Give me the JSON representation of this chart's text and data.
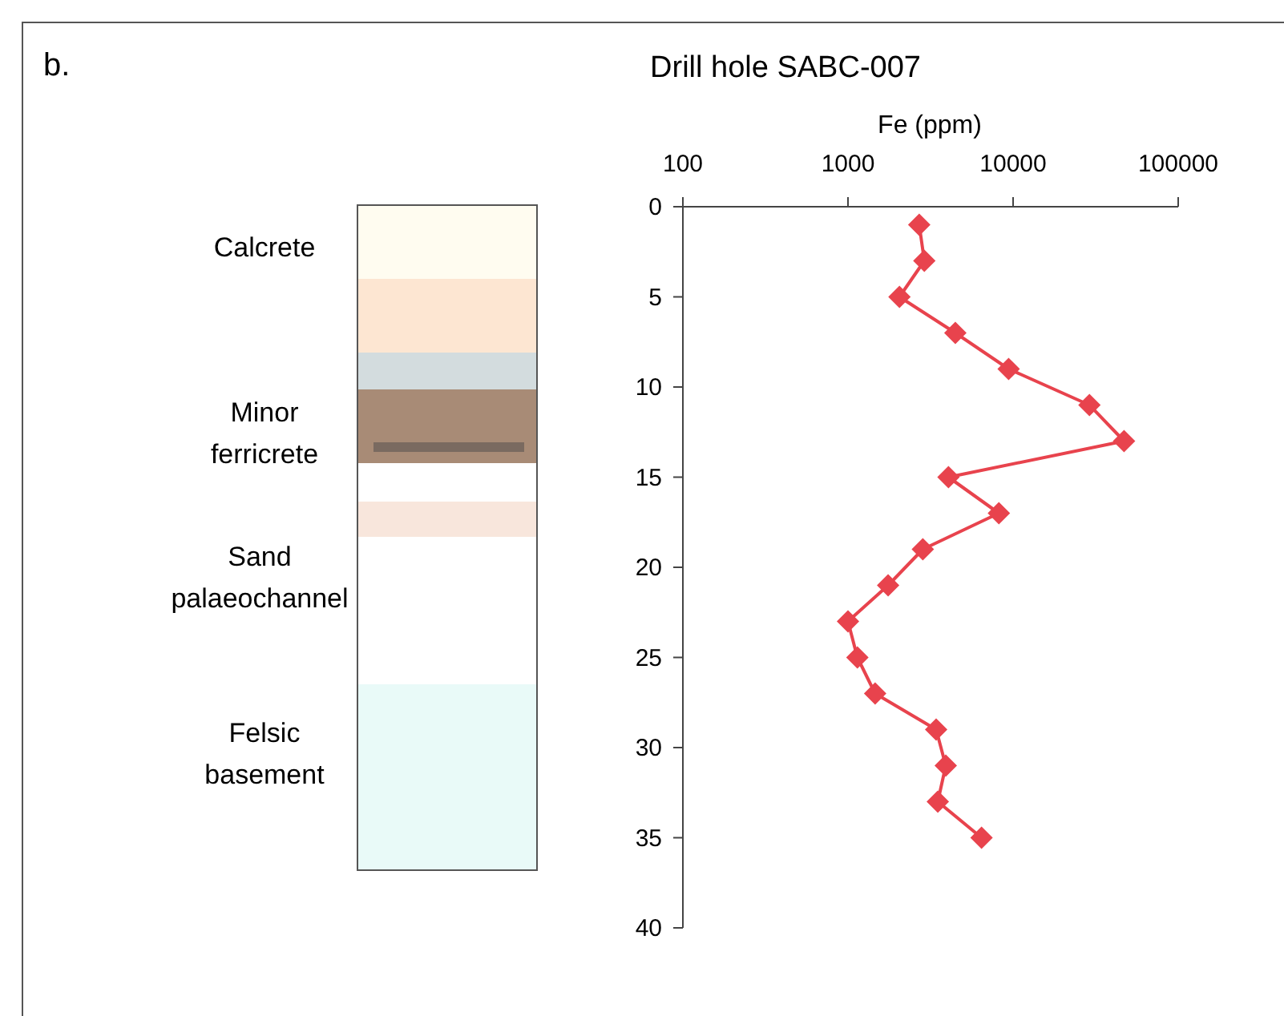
{
  "chart_data": {
    "type": "line",
    "title": "Drill hole SABC-007",
    "xlabel": "Fe (ppm)",
    "log": "x",
    "xlim": [
      100,
      100000
    ],
    "xticks": [
      100,
      1000,
      10000,
      100000
    ],
    "ylim": [
      40,
      0
    ],
    "yticks": [
      0,
      5,
      10,
      15,
      20,
      25,
      30,
      35,
      40
    ],
    "grid": false,
    "marker": "diamond",
    "line_style": "solid",
    "x": [
      2700,
      2900,
      2050,
      4470,
      9400,
      29000,
      47000,
      4060,
      8200,
      2840,
      1750,
      1000,
      1140,
      1460,
      3420,
      3910,
      3500,
      6440
    ],
    "series": [
      {
        "color": "#e8434d",
        "values": [
          1,
          3,
          5,
          7,
          9,
          11,
          13,
          15,
          17,
          19,
          21,
          23,
          25,
          27,
          29,
          31,
          33,
          35
        ]
      }
    ],
    "annotations": [
      "b.",
      "Calcrete",
      "Minor ferricrete",
      "Sand palaeochannel",
      "Felsic basement"
    ]
  }
}
